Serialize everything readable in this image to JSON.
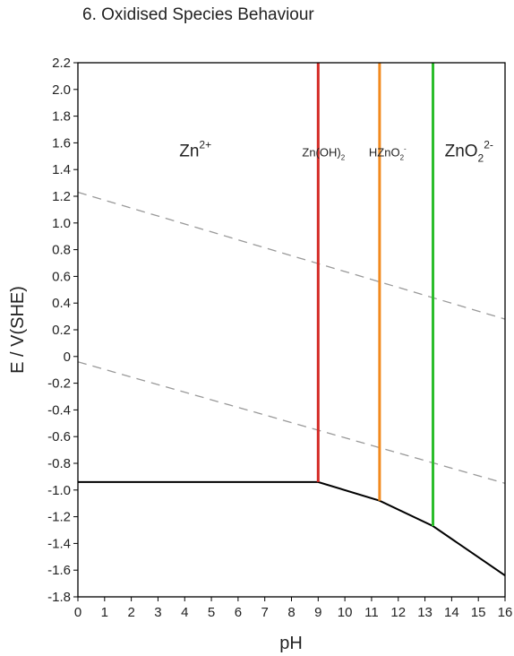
{
  "chart_data": {
    "type": "line",
    "title": "6. Oxidised Species Behaviour",
    "xlabel": "pH",
    "ylabel": "E / V(SHE)",
    "xlim": [
      0,
      16
    ],
    "ylim": [
      -1.8,
      2.2
    ],
    "xticks": [
      0,
      1,
      2,
      3,
      4,
      5,
      6,
      7,
      8,
      9,
      10,
      11,
      12,
      13,
      14,
      15,
      16
    ],
    "yticks": [
      {
        "v": 2.2,
        "label": "2.2"
      },
      {
        "v": 2.0,
        "label": "2.0"
      },
      {
        "v": 1.8,
        "label": "1.8"
      },
      {
        "v": 1.6,
        "label": "1.6"
      },
      {
        "v": 1.4,
        "label": "1.4"
      },
      {
        "v": 1.2,
        "label": "1.2"
      },
      {
        "v": 1.0,
        "label": "1.0"
      },
      {
        "v": 0.8,
        "label": "0.8"
      },
      {
        "v": 0.6,
        "label": "0.6"
      },
      {
        "v": 0.4,
        "label": "0.4"
      },
      {
        "v": 0.2,
        "label": "0.2"
      },
      {
        "v": 0.0,
        "label": "0"
      },
      {
        "v": -0.2,
        "label": "-0.2"
      },
      {
        "v": -0.4,
        "label": "-0.4"
      },
      {
        "v": -0.6,
        "label": "-0.6"
      },
      {
        "v": -0.8,
        "label": "-0.8"
      },
      {
        "v": -1.0,
        "label": "-1.0"
      },
      {
        "v": -1.2,
        "label": "-1.2"
      },
      {
        "v": -1.4,
        "label": "-1.4"
      },
      {
        "v": -1.6,
        "label": "-1.6"
      },
      {
        "v": -1.8,
        "label": "-1.8"
      }
    ],
    "grid": false,
    "series": [
      {
        "role": "boundary",
        "color": "#000000",
        "dashed": false,
        "x": [
          0,
          9.0,
          11.3,
          13.3,
          16
        ],
        "y": [
          -0.94,
          -0.94,
          -1.08,
          -1.27,
          -1.64
        ]
      },
      {
        "role": "water-upper",
        "color": "#999999",
        "dashed": true,
        "x": [
          0,
          16
        ],
        "y": [
          1.23,
          0.28
        ]
      },
      {
        "role": "water-lower",
        "color": "#999999",
        "dashed": true,
        "x": [
          0,
          16
        ],
        "y": [
          -0.04,
          -0.95
        ]
      }
    ],
    "vlines": [
      {
        "x": 9.0,
        "color": "#d42a24"
      },
      {
        "x": 11.3,
        "color": "#f28a1e"
      },
      {
        "x": 13.3,
        "color": "#2bbd2b"
      }
    ],
    "vline_bottoms": [
      -0.94,
      -1.08,
      -1.27
    ],
    "regions": [
      {
        "base": "Zn",
        "sub": "",
        "sup": "2+",
        "x": 4.4,
        "y": 1.5,
        "size": 19
      },
      {
        "base": "Zn(OH)",
        "sub": "2",
        "sup": "",
        "x": 9.2,
        "y": 1.5,
        "size": 13
      },
      {
        "base": "HZnO",
        "sub": "2",
        "sup": "-",
        "x": 11.6,
        "y": 1.5,
        "size": 13
      },
      {
        "base": "ZnO",
        "sub": "2",
        "sup": "2-",
        "x": 14.65,
        "y": 1.5,
        "size": 19
      }
    ]
  }
}
